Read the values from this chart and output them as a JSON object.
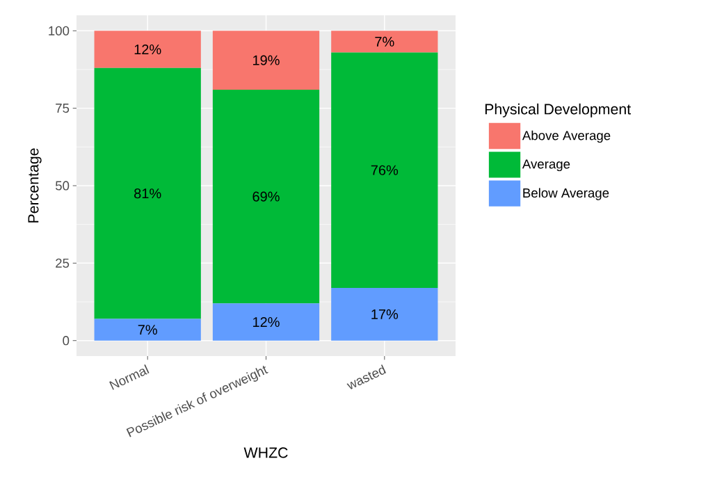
{
  "chart_data": {
    "type": "bar",
    "stacked": true,
    "xlabel": "WHZC",
    "ylabel": "Percentage",
    "legend_title": "Physical Development",
    "legend": "right",
    "grid": true,
    "categories": [
      "Normal",
      "Possible risk of overweight",
      "wasted"
    ],
    "ylim": [
      -5,
      105
    ],
    "yticks": [
      0,
      25,
      50,
      75,
      100
    ],
    "series": [
      {
        "name": "Below Average",
        "color": "#619cff",
        "values": [
          7,
          12,
          17
        ],
        "value_labels": [
          "7%",
          "12%",
          "17%"
        ]
      },
      {
        "name": "Average",
        "color": "#00ba38",
        "values": [
          81,
          69,
          76
        ],
        "value_labels": [
          "81%",
          "69%",
          "76%"
        ]
      },
      {
        "name": "Above Average",
        "color": "#f8766d",
        "values": [
          12,
          19,
          7
        ],
        "value_labels": [
          "12%",
          "19%",
          "7%"
        ]
      }
    ]
  }
}
